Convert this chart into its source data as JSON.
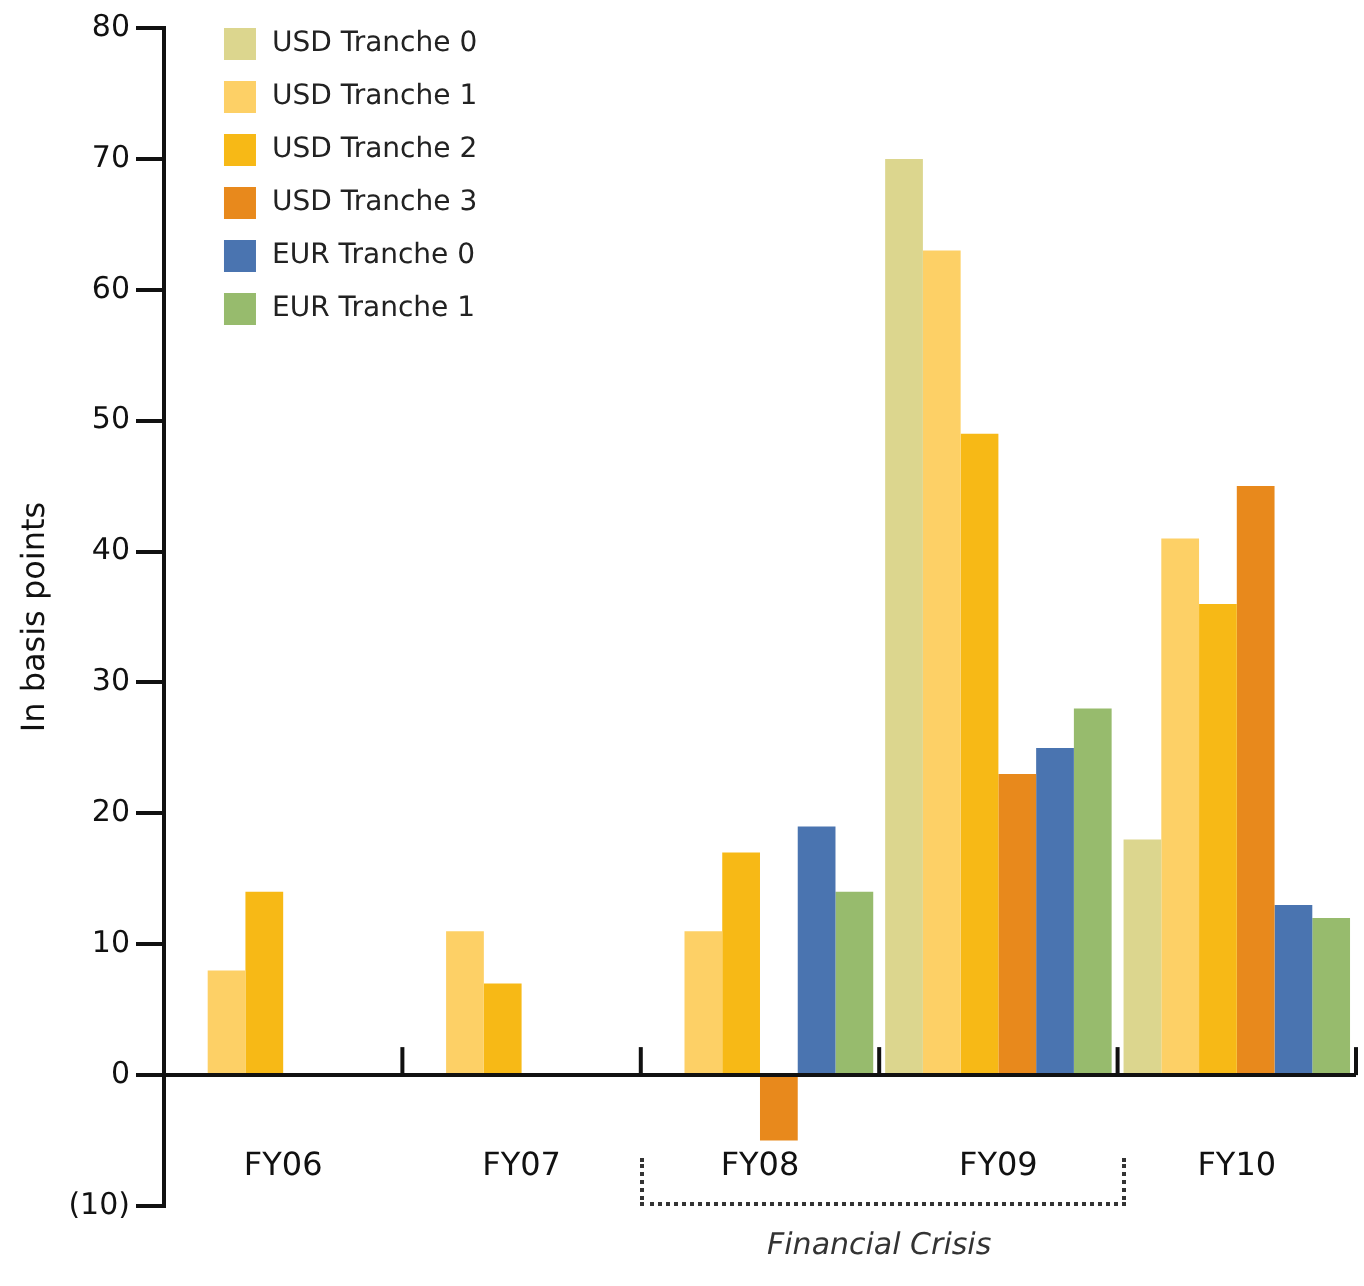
{
  "chart_data": {
    "type": "bar",
    "ylabel": "In basis points",
    "categories": [
      "FY06",
      "FY07",
      "FY08",
      "FY09",
      "FY10"
    ],
    "series": [
      {
        "name": "USD Tranche 0",
        "color": "#dcd68e",
        "values": [
          null,
          null,
          null,
          70,
          18
        ]
      },
      {
        "name": "USD Tranche 1",
        "color": "#fdd066",
        "values": [
          8,
          11,
          11,
          63,
          41
        ]
      },
      {
        "name": "USD Tranche 2",
        "color": "#f7b916",
        "values": [
          14,
          7,
          17,
          49,
          36
        ]
      },
      {
        "name": "USD Tranche 3",
        "color": "#e8891c",
        "values": [
          null,
          null,
          -5,
          23,
          45
        ]
      },
      {
        "name": "EUR Tranche 0",
        "color": "#4a74b0",
        "values": [
          null,
          null,
          19,
          25,
          13
        ]
      },
      {
        "name": "EUR Tranche 1",
        "color": "#97bb6d",
        "values": [
          null,
          null,
          14,
          28,
          12
        ]
      }
    ],
    "ylim": [
      -10,
      80
    ],
    "yticks": [
      {
        "value": -10,
        "label": "(10)"
      },
      0,
      10,
      20,
      30,
      40,
      50,
      60,
      70,
      80
    ],
    "annotations": [
      "Financial Crisis"
    ],
    "grid": false,
    "legend": "top left"
  }
}
